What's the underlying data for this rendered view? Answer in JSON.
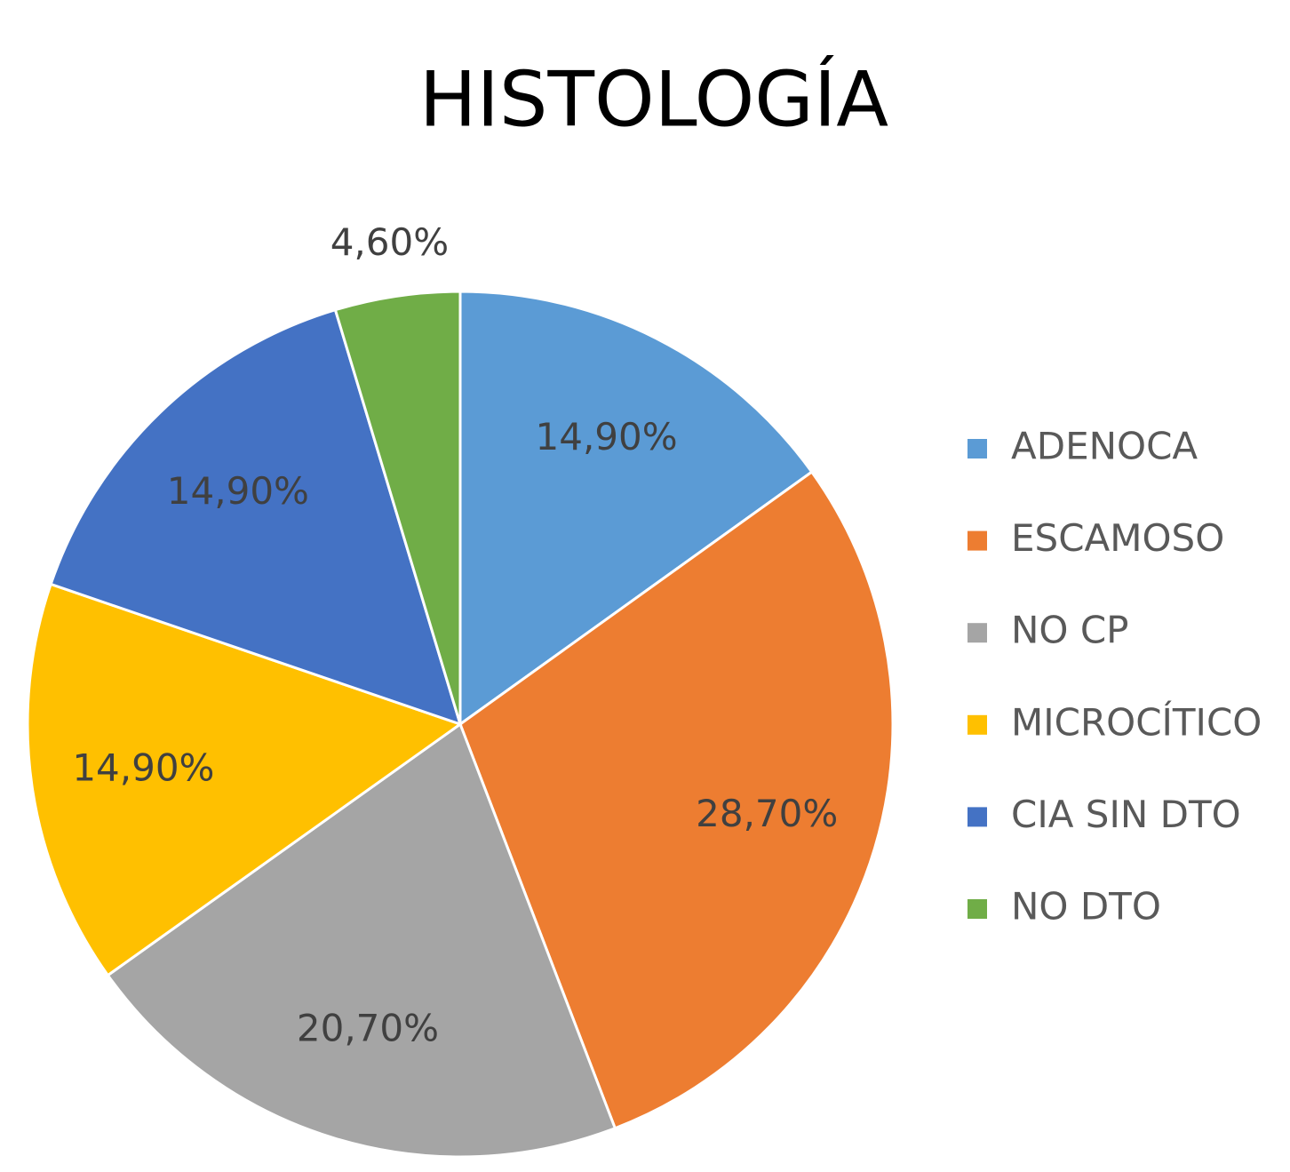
{
  "chart_data": {
    "type": "pie",
    "title": "HISTOLOGÍA",
    "categories": [
      "ADENOCA",
      "ESCAMOSO",
      "NO CP",
      "MICROCÍTICO",
      "CIA SIN DTO",
      "NO DTO"
    ],
    "values": [
      14.9,
      28.7,
      20.7,
      14.9,
      14.9,
      4.6
    ],
    "value_labels": [
      "14,90%",
      "28,70%",
      "20,70%",
      "14,90%",
      "14,90%",
      "4,60%"
    ],
    "colors": [
      "#5b9bd5",
      "#ed7d31",
      "#a5a5a5",
      "#ffc000",
      "#4472c4",
      "#70ad47"
    ],
    "legend": "right"
  }
}
